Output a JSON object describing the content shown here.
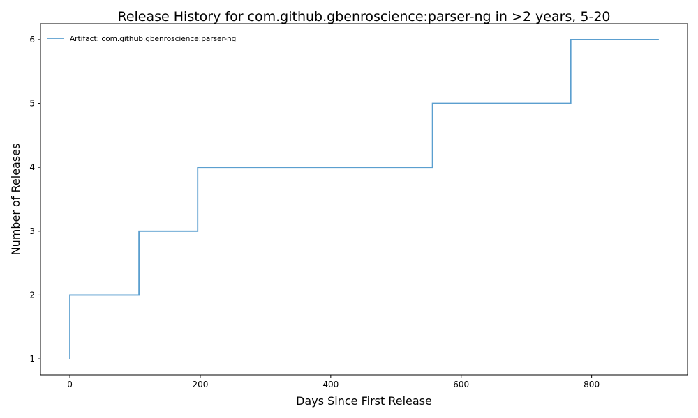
{
  "chart_data": {
    "type": "line",
    "step": "post",
    "title": "Release History for com.github.gbenroscience:parser-ng in >2 years, 5-20",
    "xlabel": "Days Since First Release",
    "ylabel": "Number of Releases",
    "xlim": [
      -45,
      947
    ],
    "ylim": [
      0.75,
      6.25
    ],
    "xticks": [
      0,
      200,
      400,
      600,
      800
    ],
    "yticks": [
      1,
      2,
      3,
      4,
      5,
      6
    ],
    "grid": false,
    "legend_position": "top-left",
    "series": [
      {
        "name": "Artifact: com.github.gbenroscience:parser-ng",
        "color": "#5b9fcf",
        "x": [
          0,
          0,
          106,
          196,
          556,
          768,
          903
        ],
        "y": [
          1,
          2,
          3,
          4,
          5,
          6,
          6
        ]
      }
    ]
  }
}
